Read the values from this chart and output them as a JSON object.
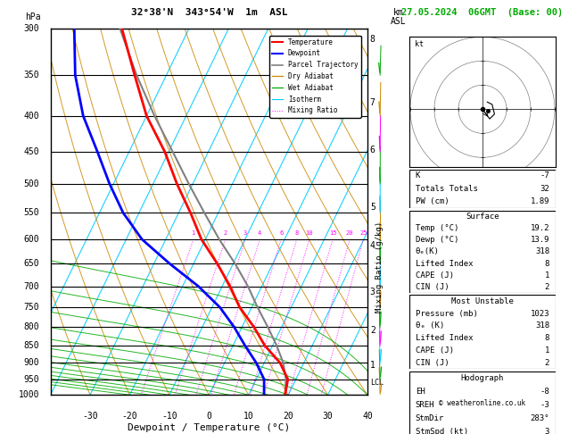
{
  "title_left": "32°38'N  343°54'W  1m  ASL",
  "title_date": "27.05.2024  06GMT  (Base: 00)",
  "xlabel": "Dewpoint / Temperature (°C)",
  "ylabel_mr": "Mixing Ratio (g/kg)",
  "p_min": 300,
  "p_max": 1000,
  "t_min": -40,
  "t_max": 40,
  "skew_factor": 45.0,
  "pressure_levels": [
    300,
    350,
    400,
    450,
    500,
    550,
    600,
    650,
    700,
    750,
    800,
    850,
    900,
    950,
    1000
  ],
  "temp_profile_T": [
    19.2,
    18.0,
    14.0,
    8.0,
    3.0,
    -3.0,
    -8.0,
    -14.0,
    -21.0,
    -27.0,
    -34.0,
    -41.0,
    -50.0,
    -58.0,
    -67.0
  ],
  "temp_profile_p": [
    1000,
    950,
    900,
    850,
    800,
    750,
    700,
    650,
    600,
    550,
    500,
    450,
    400,
    350,
    300
  ],
  "dewp_profile_T": [
    13.9,
    12.0,
    8.0,
    3.0,
    -2.0,
    -8.0,
    -16.0,
    -26.0,
    -36.0,
    -44.0,
    -51.0,
    -58.0,
    -66.0,
    -73.0,
    -79.0
  ],
  "dewp_profile_p": [
    1000,
    950,
    900,
    850,
    800,
    750,
    700,
    650,
    600,
    550,
    500,
    450,
    400,
    350,
    300
  ],
  "parcel_T": [
    19.2,
    17.5,
    14.8,
    11.0,
    6.5,
    1.5,
    -3.5,
    -9.5,
    -16.5,
    -23.5,
    -31.0,
    -39.0,
    -48.0,
    -57.5,
    -67.5
  ],
  "parcel_p": [
    1000,
    950,
    900,
    850,
    800,
    750,
    700,
    650,
    600,
    550,
    500,
    450,
    400,
    350,
    300
  ],
  "lcl_pressure": 960,
  "mixing_ratios": [
    1,
    2,
    3,
    4,
    6,
    8,
    10,
    15,
    20,
    25
  ],
  "color_temp": "#ff0000",
  "color_dewp": "#0000ff",
  "color_parcel": "#808080",
  "color_dry_adiabat": "#cc8800",
  "color_wet_adiabat": "#00aa00",
  "color_isotherm": "#00ccff",
  "color_mixing": "#ff00ff",
  "km_labels": [
    1,
    2,
    3,
    4,
    5,
    6,
    7,
    8
  ],
  "km_pressures": [
    908,
    810,
    713,
    613,
    540,
    447,
    383,
    311
  ],
  "stats": {
    "K": -7,
    "Totals_Totals": 32,
    "PW_cm": 1.89,
    "Surface_Temp": 19.2,
    "Surface_Dewp": 13.9,
    "Surface_theta_e": 318,
    "Surface_LI": 8,
    "Surface_CAPE": 1,
    "Surface_CIN": 2,
    "MU_Pressure": 1023,
    "MU_theta_e": 318,
    "MU_LI": 8,
    "MU_CAPE": 1,
    "MU_CIN": 2,
    "Hodograph_EH": -8,
    "Hodograph_SREH": -3,
    "StmDir": "283°",
    "StmSpd_kt": 3
  },
  "hodo_points": [
    [
      0.0,
      0.0
    ],
    [
      1.5,
      -2.0
    ],
    [
      2.5,
      -1.0
    ],
    [
      2.0,
      1.0
    ],
    [
      1.0,
      1.5
    ]
  ],
  "hodo_storm": [
    1.2,
    -0.3
  ]
}
